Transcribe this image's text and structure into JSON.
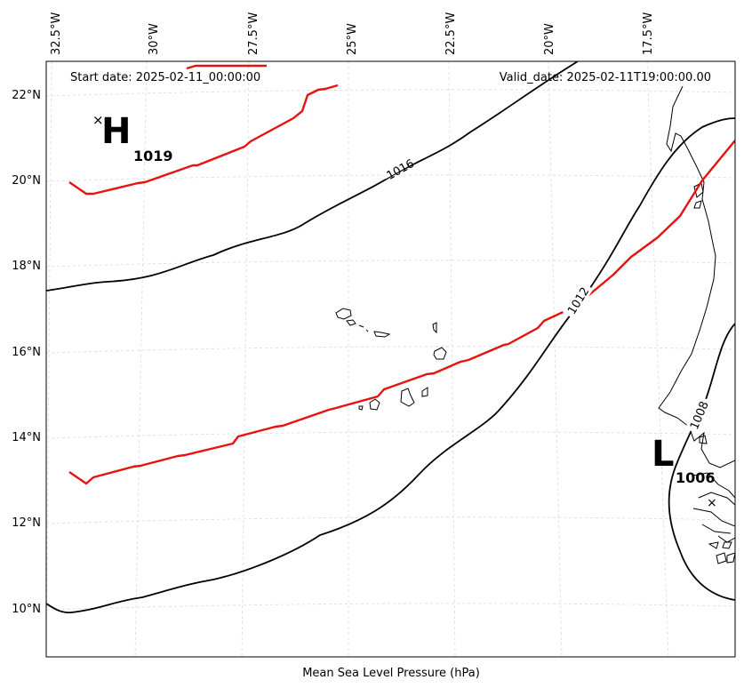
{
  "header": {
    "start_date": "Start date: 2025-02-11_00:00:00",
    "valid_date": "Valid_date: 2025-02-11T19:00:00.00"
  },
  "footer": {
    "xlabel": "Mean Sea Level Pressure (hPa)"
  },
  "axes": {
    "longitude_ticks": [
      "32.5°W",
      "30°W",
      "27.5°W",
      "25°W",
      "22.5°W",
      "20°W",
      "17.5°W"
    ],
    "latitude_ticks": [
      "22°N",
      "20°N",
      "18°N",
      "16°N",
      "14°N",
      "12°N",
      "10°N"
    ]
  },
  "pressure_centers": {
    "high": {
      "letter": "H",
      "value": "1019",
      "marker": "×"
    },
    "low": {
      "letter": "L",
      "value": "1006",
      "marker": "×"
    }
  },
  "isobars": {
    "labels": [
      "1016",
      "1012",
      "1008"
    ]
  },
  "colors": {
    "isobar": "#000000",
    "red_contour": "#e8120c",
    "grid": "#d9d9d9",
    "frame": "#000000"
  }
}
